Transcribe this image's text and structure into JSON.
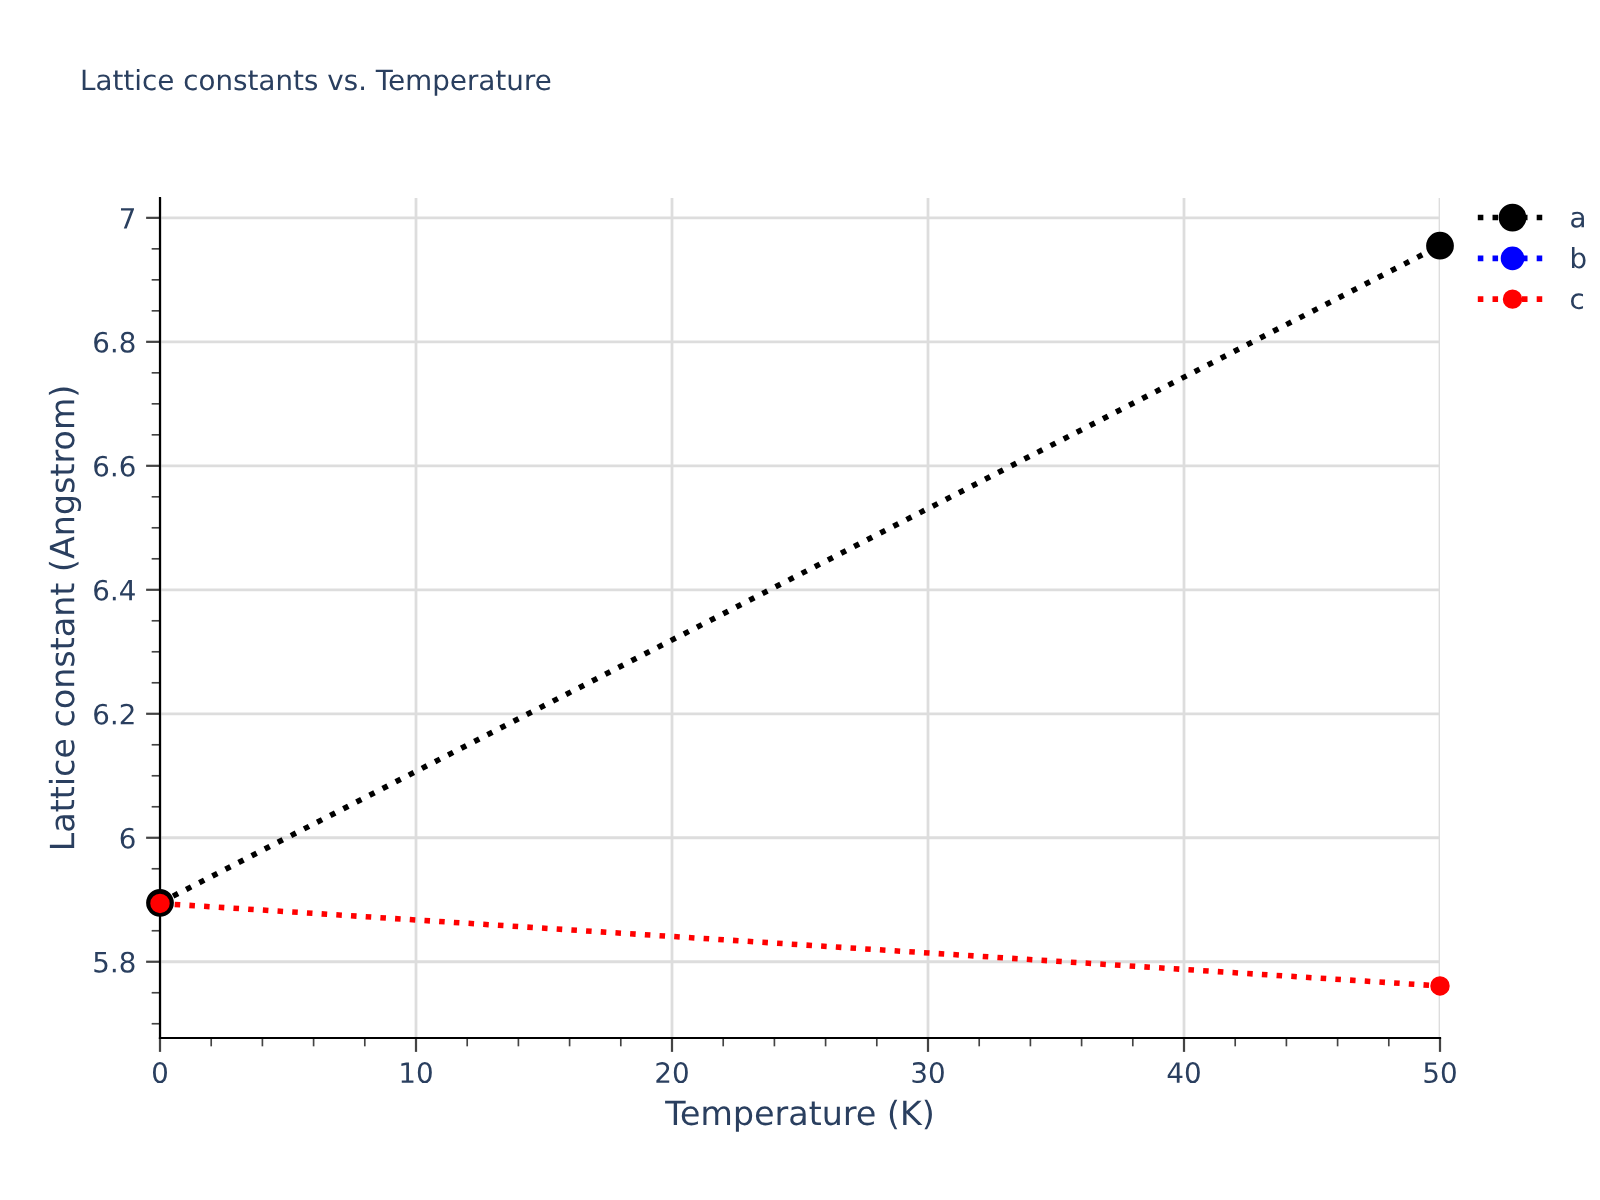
{
  "chart_data": {
    "type": "line",
    "title": "Lattice constants vs. Temperature",
    "xlabel": "Temperature (K)",
    "ylabel": "Lattice constant (Angstrom)",
    "x": [
      0,
      50
    ],
    "series": [
      {
        "name": "a",
        "color": "#000000",
        "values": [
          5.895,
          6.955
        ]
      },
      {
        "name": "b",
        "color": "#0000ff",
        "values": [
          null,
          null
        ]
      },
      {
        "name": "c",
        "color": "#ff0000",
        "values": [
          5.894,
          5.761
        ]
      }
    ],
    "xlim": [
      0,
      50
    ],
    "xticks": [
      0,
      10,
      20,
      30,
      40,
      50
    ],
    "ylim": [
      5.677,
      7.032
    ],
    "yticks": [
      5.8,
      6,
      6.2,
      6.4,
      6.6,
      6.8,
      7
    ],
    "grid": true,
    "legend": "top right",
    "marker": "circle",
    "line_style": "dotted"
  }
}
